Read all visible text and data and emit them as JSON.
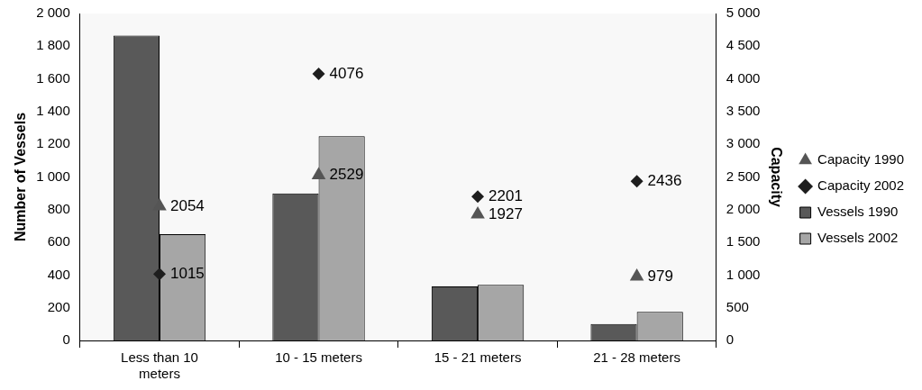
{
  "chart_data": {
    "type": "bar",
    "ylabel": "Number of Vessels",
    "y2label": "Capacity",
    "categories": [
      "Less than 10 meters",
      "10 - 15 meters",
      "15 - 21 meters",
      "21 - 28 meters"
    ],
    "series": [
      {
        "name": "Vessels 1990",
        "color": "#595959",
        "values": [
          1865,
          900,
          330,
          100
        ]
      },
      {
        "name": "Vessels 2002",
        "color": "#a6a6a6",
        "values": [
          650,
          1250,
          340,
          175
        ]
      },
      {
        "name": "Capacity 1990",
        "type": "scatter",
        "axis": "y2",
        "marker": "triangle",
        "color": "#555555",
        "values": [
          2054,
          2529,
          1927,
          979
        ],
        "value_labels": [
          "2054",
          "2529",
          "1927",
          "979"
        ]
      },
      {
        "name": "Capacity 2002",
        "type": "scatter",
        "axis": "y2",
        "marker": "diamond",
        "color": "#1e1e1e",
        "values": [
          1015,
          4076,
          2201,
          2436
        ],
        "value_labels": [
          "1015",
          "4076",
          "2201",
          "2436"
        ]
      }
    ],
    "ylim": [
      0,
      2000
    ],
    "yticks": [
      0,
      200,
      400,
      600,
      800,
      {
        "value": 1000,
        "label": "1 000"
      },
      {
        "value": 1200,
        "label": "1 200"
      },
      {
        "value": 1400,
        "label": "1 400"
      },
      {
        "value": 1600,
        "label": "1 600"
      },
      {
        "value": 1800,
        "label": "1 800"
      },
      {
        "value": 2000,
        "label": "2 000"
      }
    ],
    "y2lim": [
      0,
      5000
    ],
    "y2ticks": [
      0,
      500,
      {
        "value": 1000,
        "label": "1 000"
      },
      {
        "value": 1500,
        "label": "1 500"
      },
      {
        "value": 2000,
        "label": "2 000"
      },
      {
        "value": 2500,
        "label": "2 500"
      },
      {
        "value": 3000,
        "label": "3 000"
      },
      {
        "value": 3500,
        "label": "3 500"
      },
      {
        "value": 4000,
        "label": "4 000"
      },
      {
        "value": 4500,
        "label": "4 500"
      },
      {
        "value": 5000,
        "label": "5 000"
      }
    ],
    "grid": false,
    "legend": "right"
  }
}
